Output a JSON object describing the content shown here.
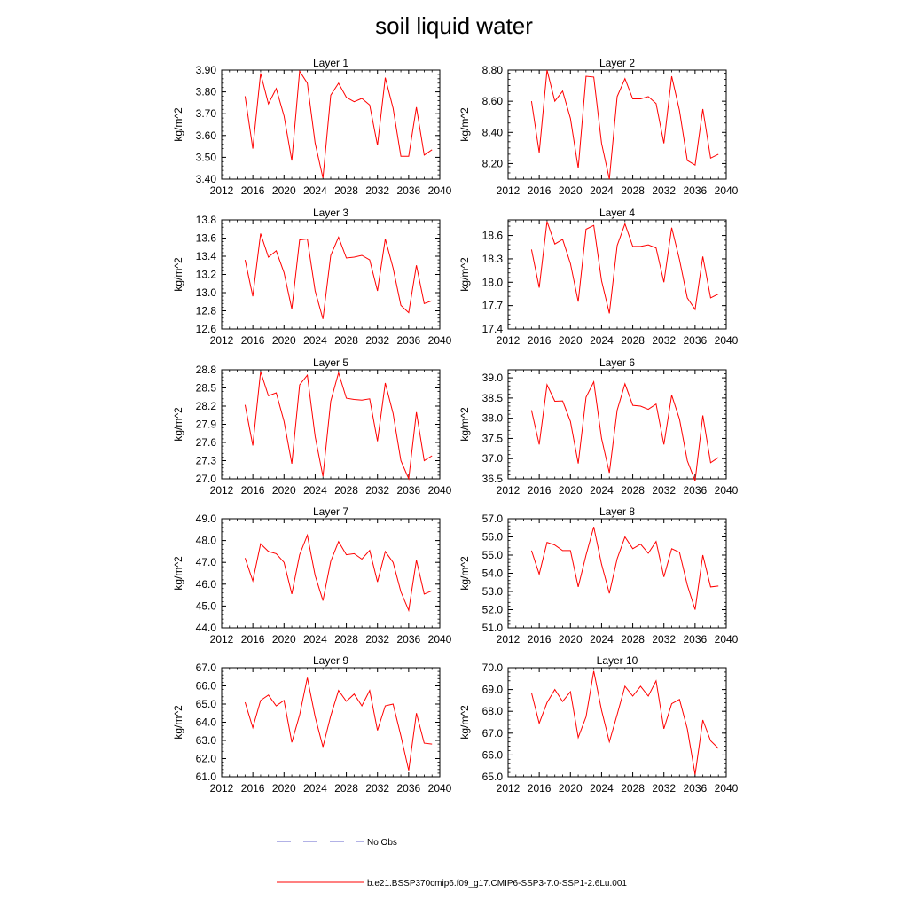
{
  "title": "soil liquid water",
  "chart_data": [
    {
      "type": "line",
      "title": "Layer 1",
      "ylabel": "kg/m^2",
      "xlim": [
        2012,
        2040
      ],
      "ylim": [
        3.4,
        3.9
      ],
      "xticks": [
        "2012",
        "2016",
        "2020",
        "2024",
        "2028",
        "2032",
        "2036",
        "2040"
      ],
      "yticks": [
        "3.40",
        "3.50",
        "3.60",
        "3.70",
        "3.80",
        "3.90"
      ],
      "x": [
        2015,
        2016,
        2017,
        2018,
        2019,
        2020,
        2021,
        2022,
        2023,
        2024,
        2025,
        2026,
        2027,
        2028,
        2029,
        2030,
        2031,
        2032,
        2033,
        2034,
        2035,
        2036,
        2037,
        2038,
        2039
      ],
      "values": [
        3.78,
        3.54,
        3.885,
        3.745,
        3.815,
        3.69,
        3.485,
        3.895,
        3.84,
        3.565,
        3.405,
        3.785,
        3.84,
        3.775,
        3.755,
        3.77,
        3.74,
        3.555,
        3.865,
        3.725,
        3.505,
        3.505,
        3.73,
        3.51,
        3.535
      ]
    },
    {
      "type": "line",
      "title": "Layer 2",
      "ylabel": "kg/m^2",
      "xlim": [
        2012,
        2040
      ],
      "ylim": [
        8.1,
        8.8
      ],
      "xticks": [
        "2012",
        "2016",
        "2020",
        "2024",
        "2028",
        "2032",
        "2036",
        "2040"
      ],
      "yticks": [
        "8.20",
        "8.40",
        "8.60",
        "8.80"
      ],
      "x": [
        2015,
        2016,
        2017,
        2018,
        2019,
        2020,
        2021,
        2022,
        2023,
        2024,
        2025,
        2026,
        2027,
        2028,
        2029,
        2030,
        2031,
        2032,
        2033,
        2034,
        2035,
        2036,
        2037,
        2038,
        2039
      ],
      "values": [
        8.6,
        8.27,
        8.8,
        8.6,
        8.665,
        8.49,
        8.17,
        8.76,
        8.755,
        8.33,
        8.1,
        8.63,
        8.745,
        8.615,
        8.615,
        8.63,
        8.585,
        8.33,
        8.76,
        8.54,
        8.22,
        8.19,
        8.55,
        8.235,
        8.26
      ]
    },
    {
      "type": "line",
      "title": "Layer 3",
      "ylabel": "kg/m^2",
      "xlim": [
        2012,
        2040
      ],
      "ylim": [
        12.6,
        13.8
      ],
      "xticks": [
        "2012",
        "2016",
        "2020",
        "2024",
        "2028",
        "2032",
        "2036",
        "2040"
      ],
      "yticks": [
        "12.6",
        "12.8",
        "13.0",
        "13.2",
        "13.4",
        "13.6",
        "13.8"
      ],
      "x": [
        2015,
        2016,
        2017,
        2018,
        2019,
        2020,
        2021,
        2022,
        2023,
        2024,
        2025,
        2026,
        2027,
        2028,
        2029,
        2030,
        2031,
        2032,
        2033,
        2034,
        2035,
        2036,
        2037,
        2038,
        2039
      ],
      "values": [
        13.36,
        12.96,
        13.65,
        13.39,
        13.46,
        13.22,
        12.82,
        13.58,
        13.59,
        13.02,
        12.71,
        13.41,
        13.61,
        13.38,
        13.39,
        13.41,
        13.36,
        13.02,
        13.59,
        13.27,
        12.86,
        12.78,
        13.3,
        12.88,
        12.91
      ]
    },
    {
      "type": "line",
      "title": "Layer 4",
      "ylabel": "kg/m^2",
      "xlim": [
        2012,
        2040
      ],
      "ylim": [
        17.4,
        18.8
      ],
      "xticks": [
        "2012",
        "2016",
        "2020",
        "2024",
        "2028",
        "2032",
        "2036",
        "2040"
      ],
      "yticks": [
        "17.4",
        "17.7",
        "18.0",
        "18.3",
        "18.6"
      ],
      "x": [
        2015,
        2016,
        2017,
        2018,
        2019,
        2020,
        2021,
        2022,
        2023,
        2024,
        2025,
        2026,
        2027,
        2028,
        2029,
        2030,
        2031,
        2032,
        2033,
        2034,
        2035,
        2036,
        2037,
        2038,
        2039
      ],
      "values": [
        18.42,
        17.93,
        18.78,
        18.49,
        18.55,
        18.24,
        17.75,
        18.68,
        18.73,
        18.02,
        17.6,
        18.47,
        18.75,
        18.46,
        18.46,
        18.48,
        18.44,
        18.0,
        18.7,
        18.29,
        17.8,
        17.65,
        18.33,
        17.8,
        17.85
      ]
    },
    {
      "type": "line",
      "title": "Layer 5",
      "ylabel": "kg/m^2",
      "xlim": [
        2012,
        2040
      ],
      "ylim": [
        27.0,
        28.8
      ],
      "xticks": [
        "2012",
        "2016",
        "2020",
        "2024",
        "2028",
        "2032",
        "2036",
        "2040"
      ],
      "yticks": [
        "27.0",
        "27.3",
        "27.6",
        "27.9",
        "28.2",
        "28.5",
        "28.8"
      ],
      "x": [
        2015,
        2016,
        2017,
        2018,
        2019,
        2020,
        2021,
        2022,
        2023,
        2024,
        2025,
        2026,
        2027,
        2028,
        2029,
        2030,
        2031,
        2032,
        2033,
        2034,
        2035,
        2036,
        2037,
        2038,
        2039
      ],
      "values": [
        28.22,
        27.55,
        28.77,
        28.37,
        28.42,
        27.95,
        27.25,
        28.55,
        28.71,
        27.7,
        27.04,
        28.28,
        28.75,
        28.33,
        28.31,
        28.3,
        28.32,
        27.62,
        28.58,
        28.08,
        27.3,
        27.0,
        28.1,
        27.3,
        27.38
      ]
    },
    {
      "type": "line",
      "title": "Layer 6",
      "ylabel": "kg/m^2",
      "xlim": [
        2012,
        2040
      ],
      "ylim": [
        36.5,
        39.2
      ],
      "xticks": [
        "2012",
        "2016",
        "2020",
        "2024",
        "2028",
        "2032",
        "2036",
        "2040"
      ],
      "yticks": [
        "36.5",
        "37.0",
        "37.5",
        "38.0",
        "38.5",
        "39.0"
      ],
      "x": [
        2015,
        2016,
        2017,
        2018,
        2019,
        2020,
        2021,
        2022,
        2023,
        2024,
        2025,
        2026,
        2027,
        2028,
        2029,
        2030,
        2031,
        2032,
        2033,
        2034,
        2035,
        2036,
        2037,
        2038,
        2039
      ],
      "values": [
        38.2,
        37.35,
        38.83,
        38.42,
        38.43,
        37.92,
        36.88,
        38.52,
        38.9,
        37.5,
        36.65,
        38.2,
        38.85,
        38.32,
        38.3,
        38.22,
        38.35,
        37.35,
        38.57,
        37.98,
        36.95,
        36.45,
        38.07,
        36.9,
        37.03
      ]
    },
    {
      "type": "line",
      "title": "Layer 7",
      "ylabel": "kg/m^2",
      "xlim": [
        2012,
        2040
      ],
      "ylim": [
        44.0,
        49.0
      ],
      "xticks": [
        "2012",
        "2016",
        "2020",
        "2024",
        "2028",
        "2032",
        "2036",
        "2040"
      ],
      "yticks": [
        "44.0",
        "45.0",
        "46.0",
        "47.0",
        "48.0",
        "49.0"
      ],
      "x": [
        2015,
        2016,
        2017,
        2018,
        2019,
        2020,
        2021,
        2022,
        2023,
        2024,
        2025,
        2026,
        2027,
        2028,
        2029,
        2030,
        2031,
        2032,
        2033,
        2034,
        2035,
        2036,
        2037,
        2038,
        2039
      ],
      "values": [
        47.2,
        46.15,
        47.85,
        47.5,
        47.4,
        47.0,
        45.55,
        47.35,
        48.25,
        46.4,
        45.25,
        47.05,
        47.95,
        47.35,
        47.4,
        47.15,
        47.55,
        46.1,
        47.5,
        47.0,
        45.65,
        44.8,
        47.1,
        45.55,
        45.7
      ]
    },
    {
      "type": "line",
      "title": "Layer 8",
      "ylabel": "kg/m^2",
      "xlim": [
        2012,
        2040
      ],
      "ylim": [
        51.0,
        57.0
      ],
      "xticks": [
        "2012",
        "2016",
        "2020",
        "2024",
        "2028",
        "2032",
        "2036",
        "2040"
      ],
      "yticks": [
        "51.0",
        "52.0",
        "53.0",
        "54.0",
        "55.0",
        "56.0",
        "57.0"
      ],
      "x": [
        2015,
        2016,
        2017,
        2018,
        2019,
        2020,
        2021,
        2022,
        2023,
        2024,
        2025,
        2026,
        2027,
        2028,
        2029,
        2030,
        2031,
        2032,
        2033,
        2034,
        2035,
        2036,
        2037,
        2038,
        2039
      ],
      "values": [
        55.25,
        53.95,
        55.7,
        55.55,
        55.25,
        55.25,
        53.25,
        55.0,
        56.55,
        54.5,
        52.9,
        54.8,
        56.0,
        55.35,
        55.6,
        55.1,
        55.75,
        53.8,
        55.35,
        55.15,
        53.35,
        52.0,
        55.0,
        53.25,
        53.3
      ]
    },
    {
      "type": "line",
      "title": "Layer 9",
      "ylabel": "kg/m^2",
      "xlim": [
        2012,
        2040
      ],
      "ylim": [
        61.0,
        67.0
      ],
      "xticks": [
        "2012",
        "2016",
        "2020",
        "2024",
        "2028",
        "2032",
        "2036",
        "2040"
      ],
      "yticks": [
        "61.0",
        "62.0",
        "63.0",
        "64.0",
        "65.0",
        "66.0",
        "67.0"
      ],
      "x": [
        2015,
        2016,
        2017,
        2018,
        2019,
        2020,
        2021,
        2022,
        2023,
        2024,
        2025,
        2026,
        2027,
        2028,
        2029,
        2030,
        2031,
        2032,
        2033,
        2034,
        2035,
        2036,
        2037,
        2038,
        2039
      ],
      "values": [
        65.1,
        63.7,
        65.2,
        65.5,
        64.9,
        65.2,
        62.9,
        64.4,
        66.45,
        64.3,
        62.65,
        64.35,
        65.75,
        65.15,
        65.55,
        64.9,
        65.75,
        63.55,
        64.9,
        65.0,
        63.25,
        61.35,
        64.5,
        62.85,
        62.8
      ]
    },
    {
      "type": "line",
      "title": "Layer 10",
      "ylabel": "kg/m^2",
      "xlim": [
        2012,
        2040
      ],
      "ylim": [
        65.0,
        70.0
      ],
      "xticks": [
        "2012",
        "2016",
        "2020",
        "2024",
        "2028",
        "2032",
        "2036",
        "2040"
      ],
      "yticks": [
        "65.0",
        "66.0",
        "67.0",
        "68.0",
        "69.0",
        "70.0"
      ],
      "x": [
        2015,
        2016,
        2017,
        2018,
        2019,
        2020,
        2021,
        2022,
        2023,
        2024,
        2025,
        2026,
        2027,
        2028,
        2029,
        2030,
        2031,
        2032,
        2033,
        2034,
        2035,
        2036,
        2037,
        2038,
        2039
      ],
      "values": [
        68.85,
        67.45,
        68.4,
        69.0,
        68.45,
        68.9,
        66.8,
        67.75,
        69.85,
        68.05,
        66.6,
        67.85,
        69.15,
        68.7,
        69.15,
        68.7,
        69.4,
        67.2,
        68.35,
        68.55,
        67.2,
        65.1,
        67.6,
        66.65,
        66.3
      ]
    }
  ],
  "legend": [
    {
      "label": "No Obs",
      "color": "#6666cc",
      "style": "dashed"
    },
    {
      "label": "b.e21.BSSP370cmip6.f09_g17.CMIP6-SSP3-7.0-SSP1-2.6Lu.001",
      "color": "#ff0000",
      "style": "solid"
    }
  ],
  "colors": {
    "series": "#ff0000",
    "axis": "#000000"
  }
}
